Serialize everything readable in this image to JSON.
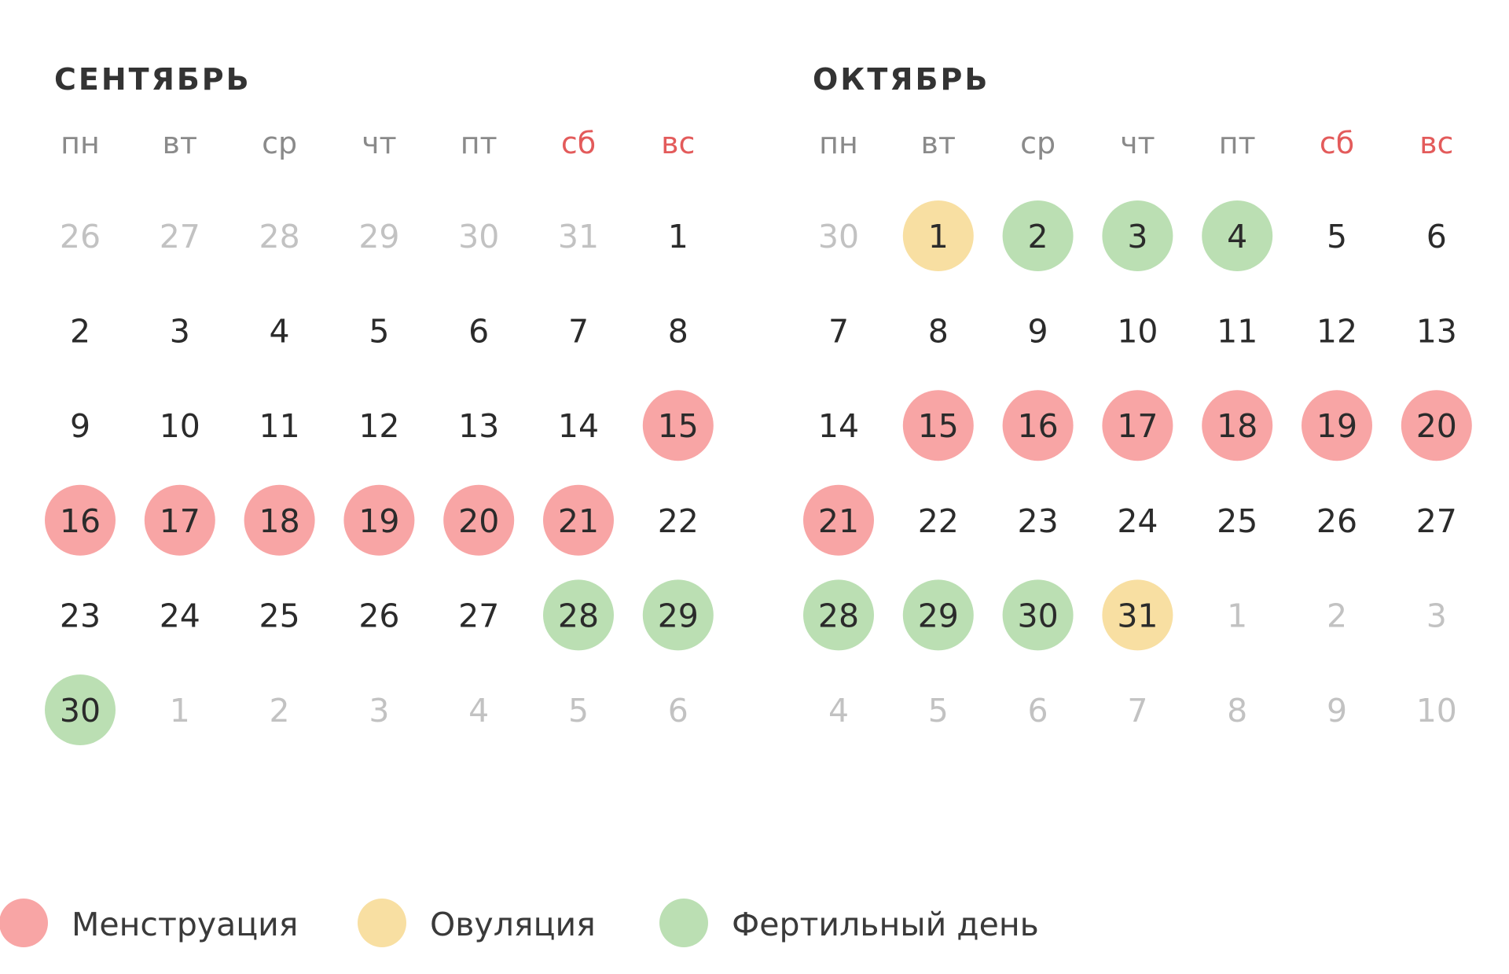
{
  "months": [
    {
      "title": "СЕНТЯБРЬ",
      "weekdays": [
        {
          "label": "пн",
          "color": "#8a8a8a"
        },
        {
          "label": "вт",
          "color": "#8a8a8a"
        },
        {
          "label": "ср",
          "color": "#8a8a8a"
        },
        {
          "label": "чт",
          "color": "#8a8a8a"
        },
        {
          "label": "пт",
          "color": "#8a8a8a"
        },
        {
          "label": "сб",
          "color": "#e35b5b"
        },
        {
          "label": "вс",
          "color": "#e35b5b"
        }
      ],
      "days": [
        {
          "n": 26,
          "muted": true
        },
        {
          "n": 27,
          "muted": true
        },
        {
          "n": 28,
          "muted": true
        },
        {
          "n": 29,
          "muted": true
        },
        {
          "n": 30,
          "muted": true
        },
        {
          "n": 31,
          "muted": true
        },
        {
          "n": 1
        },
        {
          "n": 2
        },
        {
          "n": 3
        },
        {
          "n": 4
        },
        {
          "n": 5
        },
        {
          "n": 6
        },
        {
          "n": 7
        },
        {
          "n": 8
        },
        {
          "n": 9
        },
        {
          "n": 10
        },
        {
          "n": 11
        },
        {
          "n": 12
        },
        {
          "n": 13
        },
        {
          "n": 14
        },
        {
          "n": 15,
          "fill": "#f8a5a5"
        },
        {
          "n": 16,
          "fill": "#f8a5a5"
        },
        {
          "n": 17,
          "fill": "#f8a5a5"
        },
        {
          "n": 18,
          "fill": "#f8a5a5"
        },
        {
          "n": 19,
          "fill": "#f8a5a5"
        },
        {
          "n": 20,
          "fill": "#f8a5a5"
        },
        {
          "n": 21,
          "fill": "#f8a5a5"
        },
        {
          "n": 22
        },
        {
          "n": 23
        },
        {
          "n": 24
        },
        {
          "n": 25
        },
        {
          "n": 26
        },
        {
          "n": 27
        },
        {
          "n": 28,
          "fill": "#bbdfb3"
        },
        {
          "n": 29,
          "fill": "#bbdfb3"
        },
        {
          "n": 30,
          "fill": "#bbdfb3"
        },
        {
          "n": 1,
          "muted": true
        },
        {
          "n": 2,
          "muted": true
        },
        {
          "n": 3,
          "muted": true
        },
        {
          "n": 4,
          "muted": true
        },
        {
          "n": 5,
          "muted": true
        },
        {
          "n": 6,
          "muted": true
        }
      ]
    },
    {
      "title": "ОКТЯБРЬ",
      "weekdays": [
        {
          "label": "пн",
          "color": "#8a8a8a"
        },
        {
          "label": "вт",
          "color": "#8a8a8a"
        },
        {
          "label": "ср",
          "color": "#8a8a8a"
        },
        {
          "label": "чт",
          "color": "#8a8a8a"
        },
        {
          "label": "пт",
          "color": "#8a8a8a"
        },
        {
          "label": "сб",
          "color": "#e35b5b"
        },
        {
          "label": "вс",
          "color": "#e35b5b"
        }
      ],
      "days": [
        {
          "n": 30,
          "muted": true
        },
        {
          "n": 1,
          "fill": "#f8dfa2"
        },
        {
          "n": 2,
          "fill": "#bbdfb3"
        },
        {
          "n": 3,
          "fill": "#bbdfb3"
        },
        {
          "n": 4,
          "fill": "#bbdfb3"
        },
        {
          "n": 5
        },
        {
          "n": 6
        },
        {
          "n": 7
        },
        {
          "n": 8
        },
        {
          "n": 9
        },
        {
          "n": 10
        },
        {
          "n": 11
        },
        {
          "n": 12
        },
        {
          "n": 13
        },
        {
          "n": 14
        },
        {
          "n": 15,
          "fill": "#f8a5a5"
        },
        {
          "n": 16,
          "fill": "#f8a5a5"
        },
        {
          "n": 17,
          "fill": "#f8a5a5"
        },
        {
          "n": 18,
          "fill": "#f8a5a5"
        },
        {
          "n": 19,
          "fill": "#f8a5a5"
        },
        {
          "n": 20,
          "fill": "#f8a5a5"
        },
        {
          "n": 21,
          "fill": "#f8a5a5"
        },
        {
          "n": 22
        },
        {
          "n": 23
        },
        {
          "n": 24
        },
        {
          "n": 25
        },
        {
          "n": 26
        },
        {
          "n": 27
        },
        {
          "n": 28,
          "fill": "#bbdfb3"
        },
        {
          "n": 29,
          "fill": "#bbdfb3"
        },
        {
          "n": 30,
          "fill": "#bbdfb3"
        },
        {
          "n": 31,
          "fill": "#f8dfa2"
        },
        {
          "n": 1,
          "muted": true
        },
        {
          "n": 2,
          "muted": true
        },
        {
          "n": 3,
          "muted": true
        },
        {
          "n": 4,
          "muted": true
        },
        {
          "n": 5,
          "muted": true
        },
        {
          "n": 6,
          "muted": true
        },
        {
          "n": 7,
          "muted": true
        },
        {
          "n": 8,
          "muted": true
        },
        {
          "n": 9,
          "muted": true
        },
        {
          "n": 10,
          "muted": true
        }
      ]
    }
  ],
  "legend": [
    {
      "label": "Менструация",
      "color": "#f8a5a5"
    },
    {
      "label": "Овуляция",
      "color": "#f8dfa2"
    },
    {
      "label": "Фертильный день",
      "color": "#bbdfb3"
    }
  ]
}
